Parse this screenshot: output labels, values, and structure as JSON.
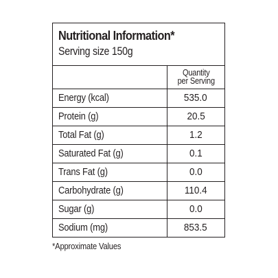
{
  "panel": {
    "title": "Nutritional Information*",
    "serving": "Serving size 150g",
    "column_header_line1": "Quantity",
    "column_header_line2": "per Serving",
    "rows": [
      {
        "label": "Energy (kcal)",
        "value": "535.0"
      },
      {
        "label": "Protein (g)",
        "value": "20.5"
      },
      {
        "label": "Total Fat (g)",
        "value": "1.2"
      },
      {
        "label": "Saturated Fat (g)",
        "value": "0.1"
      },
      {
        "label": "Trans Fat (g)",
        "value": "0.0"
      },
      {
        "label": "Carbohydrate (g)",
        "value": "110.4"
      },
      {
        "label": "Sugar (g)",
        "value": "0.0"
      },
      {
        "label": "Sodium (mg)",
        "value": "853.5"
      }
    ]
  },
  "footnote": "*Approximate Values"
}
